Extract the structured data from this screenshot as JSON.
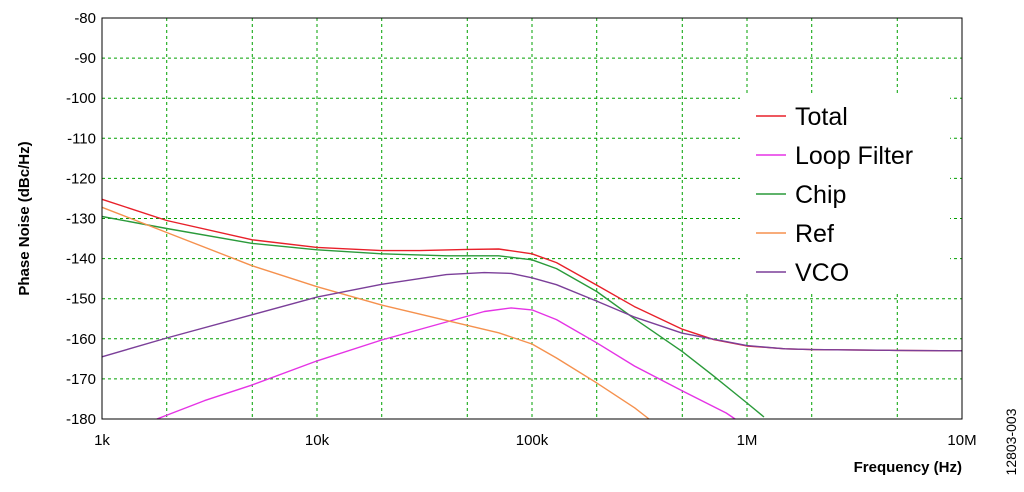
{
  "chart_data": {
    "type": "line",
    "xlabel": "Frequency (Hz)",
    "ylabel": "Phase Noise (dBc/Hz)",
    "x_scale": "log",
    "xlim": [
      1000,
      10000000
    ],
    "ylim": [
      -180,
      -80
    ],
    "x_ticks": [
      {
        "value": 1000,
        "label": "1k"
      },
      {
        "value": 10000,
        "label": "10k"
      },
      {
        "value": 100000,
        "label": "100k"
      },
      {
        "value": 1000000,
        "label": "1M"
      },
      {
        "value": 10000000,
        "label": "10M"
      }
    ],
    "y_ticks": [
      {
        "value": -80,
        "label": "-80"
      },
      {
        "value": -90,
        "label": "-90"
      },
      {
        "value": -100,
        "label": "-100"
      },
      {
        "value": -110,
        "label": "-110"
      },
      {
        "value": -120,
        "label": "-120"
      },
      {
        "value": -130,
        "label": "-130"
      },
      {
        "value": -140,
        "label": "-140"
      },
      {
        "value": -150,
        "label": "-150"
      },
      {
        "value": -160,
        "label": "-160"
      },
      {
        "value": -170,
        "label": "-170"
      },
      {
        "value": -180,
        "label": "-180"
      }
    ],
    "grid": true,
    "grid_style": "dashed",
    "grid_color": "#00a000",
    "legend_position": "right",
    "figure_id": "12803-003",
    "series": [
      {
        "name": "Total",
        "color": "#e8202a",
        "points": [
          [
            1000,
            -125.2
          ],
          [
            2000,
            -130.5
          ],
          [
            5000,
            -135.3
          ],
          [
            10000,
            -137.2
          ],
          [
            20000,
            -138.0
          ],
          [
            30000,
            -138.0
          ],
          [
            50000,
            -137.7
          ],
          [
            70000,
            -137.6
          ],
          [
            100000,
            -138.8
          ],
          [
            130000,
            -141.0
          ],
          [
            200000,
            -146.6
          ],
          [
            300000,
            -152.0
          ],
          [
            500000,
            -157.6
          ],
          [
            700000,
            -160.2
          ],
          [
            1000000,
            -161.8
          ],
          [
            1500000,
            -162.5
          ],
          [
            2000000,
            -162.7
          ],
          [
            5000000,
            -162.9
          ],
          [
            10000000,
            -163.0
          ]
        ]
      },
      {
        "name": "Loop Filter",
        "color": "#e533e5",
        "points": [
          [
            1800,
            -180.0
          ],
          [
            3000,
            -175.4
          ],
          [
            5000,
            -171.5
          ],
          [
            10000,
            -165.5
          ],
          [
            20000,
            -160.3
          ],
          [
            40000,
            -155.8
          ],
          [
            60000,
            -153.2
          ],
          [
            80000,
            -152.3
          ],
          [
            100000,
            -152.8
          ],
          [
            130000,
            -155.2
          ],
          [
            200000,
            -161.0
          ],
          [
            300000,
            -166.8
          ],
          [
            500000,
            -173.0
          ],
          [
            800000,
            -178.5
          ],
          [
            880000,
            -180.0
          ]
        ]
      },
      {
        "name": "Chip",
        "color": "#2a9a3a",
        "points": [
          [
            1000,
            -129.5
          ],
          [
            2000,
            -132.5
          ],
          [
            5000,
            -136.2
          ],
          [
            10000,
            -137.8
          ],
          [
            20000,
            -138.8
          ],
          [
            40000,
            -139.3
          ],
          [
            70000,
            -139.3
          ],
          [
            100000,
            -140.3
          ],
          [
            130000,
            -142.5
          ],
          [
            200000,
            -148.2
          ],
          [
            300000,
            -155.0
          ],
          [
            500000,
            -163.2
          ],
          [
            700000,
            -169.3
          ],
          [
            1000000,
            -176.0
          ],
          [
            1200000,
            -179.5
          ]
        ]
      },
      {
        "name": "Ref",
        "color": "#f5914e",
        "points": [
          [
            1000,
            -127.2
          ],
          [
            2000,
            -133.5
          ],
          [
            5000,
            -141.8
          ],
          [
            10000,
            -147.0
          ],
          [
            20000,
            -151.6
          ],
          [
            40000,
            -155.4
          ],
          [
            70000,
            -158.5
          ],
          [
            100000,
            -161.3
          ],
          [
            130000,
            -164.8
          ],
          [
            200000,
            -171.0
          ],
          [
            300000,
            -177.2
          ],
          [
            350000,
            -180.0
          ]
        ]
      },
      {
        "name": "VCO",
        "color": "#7b3f99",
        "points": [
          [
            1000,
            -164.5
          ],
          [
            2000,
            -159.8
          ],
          [
            5000,
            -154.0
          ],
          [
            10000,
            -149.6
          ],
          [
            20000,
            -146.4
          ],
          [
            40000,
            -144.0
          ],
          [
            60000,
            -143.5
          ],
          [
            80000,
            -143.7
          ],
          [
            100000,
            -144.8
          ],
          [
            130000,
            -146.5
          ],
          [
            200000,
            -150.6
          ],
          [
            300000,
            -154.6
          ],
          [
            500000,
            -158.6
          ],
          [
            1000000,
            -161.7
          ],
          [
            1500000,
            -162.5
          ],
          [
            2000000,
            -162.7
          ],
          [
            5000000,
            -162.9
          ],
          [
            10000000,
            -163.0
          ]
        ]
      }
    ]
  }
}
